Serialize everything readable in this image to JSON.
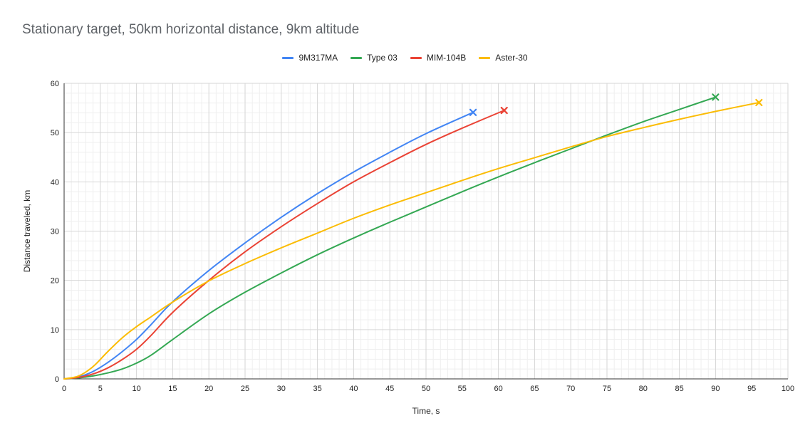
{
  "chart_data": {
    "type": "line",
    "title": "Stationary target, 50km horizontal distance, 9km altitude",
    "xlabel": "Time, s",
    "ylabel": "Distance traveled, km",
    "xlim": [
      0,
      100
    ],
    "ylim": [
      0,
      60
    ],
    "x_ticks": [
      0,
      5,
      10,
      15,
      20,
      25,
      30,
      35,
      40,
      45,
      50,
      55,
      60,
      65,
      70,
      75,
      80,
      85,
      90,
      95,
      100
    ],
    "y_ticks": [
      0,
      10,
      20,
      30,
      40,
      50,
      60
    ],
    "grid": true,
    "legend_position": "top",
    "series": [
      {
        "name": "9M317MA",
        "color": "#4285f4",
        "end_marker": "x",
        "points": [
          [
            0,
            0
          ],
          [
            2,
            0.4
          ],
          [
            4,
            1.5
          ],
          [
            6,
            3.3
          ],
          [
            8,
            5.5
          ],
          [
            10,
            8.0
          ],
          [
            12,
            11.0
          ],
          [
            14,
            14.2
          ],
          [
            16,
            17.0
          ],
          [
            20,
            22.0
          ],
          [
            25,
            27.6
          ],
          [
            30,
            32.8
          ],
          [
            35,
            37.6
          ],
          [
            40,
            42.0
          ],
          [
            45,
            46.0
          ],
          [
            50,
            49.8
          ],
          [
            56.5,
            54.1
          ]
        ]
      },
      {
        "name": "Type 03",
        "color": "#34a853",
        "end_marker": "x",
        "points": [
          [
            0,
            0
          ],
          [
            2,
            0.2
          ],
          [
            4,
            0.6
          ],
          [
            6,
            1.2
          ],
          [
            8,
            2.0
          ],
          [
            10,
            3.2
          ],
          [
            12,
            4.8
          ],
          [
            15,
            8.0
          ],
          [
            20,
            13.2
          ],
          [
            25,
            17.6
          ],
          [
            30,
            21.5
          ],
          [
            35,
            25.2
          ],
          [
            40,
            28.6
          ],
          [
            45,
            31.8
          ],
          [
            50,
            34.9
          ],
          [
            55,
            38.0
          ],
          [
            60,
            41.0
          ],
          [
            65,
            43.9
          ],
          [
            70,
            46.7
          ],
          [
            75,
            49.5
          ],
          [
            80,
            52.2
          ],
          [
            85,
            54.7
          ],
          [
            90,
            57.2
          ]
        ]
      },
      {
        "name": "MIM-104B",
        "color": "#ea4335",
        "end_marker": "x",
        "points": [
          [
            0,
            0
          ],
          [
            2,
            0.3
          ],
          [
            4,
            1.0
          ],
          [
            6,
            2.2
          ],
          [
            8,
            3.9
          ],
          [
            10,
            6.0
          ],
          [
            12,
            8.8
          ],
          [
            15,
            13.5
          ],
          [
            20,
            20.0
          ],
          [
            25,
            25.8
          ],
          [
            30,
            30.9
          ],
          [
            35,
            35.6
          ],
          [
            40,
            40.0
          ],
          [
            45,
            43.9
          ],
          [
            50,
            47.6
          ],
          [
            55,
            50.9
          ],
          [
            60.8,
            54.5
          ]
        ]
      },
      {
        "name": "Aster-30",
        "color": "#fbbc04",
        "end_marker": "x",
        "points": [
          [
            0,
            0
          ],
          [
            2,
            0.6
          ],
          [
            4,
            2.5
          ],
          [
            6,
            5.5
          ],
          [
            8,
            8.3
          ],
          [
            10,
            10.6
          ],
          [
            12,
            12.6
          ],
          [
            15,
            15.6
          ],
          [
            20,
            19.9
          ],
          [
            25,
            23.4
          ],
          [
            30,
            26.6
          ],
          [
            35,
            29.6
          ],
          [
            40,
            32.6
          ],
          [
            45,
            35.3
          ],
          [
            50,
            37.8
          ],
          [
            55,
            40.3
          ],
          [
            60,
            42.7
          ],
          [
            65,
            44.9
          ],
          [
            70,
            47.1
          ],
          [
            75,
            49.2
          ],
          [
            80,
            51.0
          ],
          [
            85,
            52.7
          ],
          [
            90,
            54.3
          ],
          [
            96,
            56.1
          ]
        ]
      }
    ]
  }
}
